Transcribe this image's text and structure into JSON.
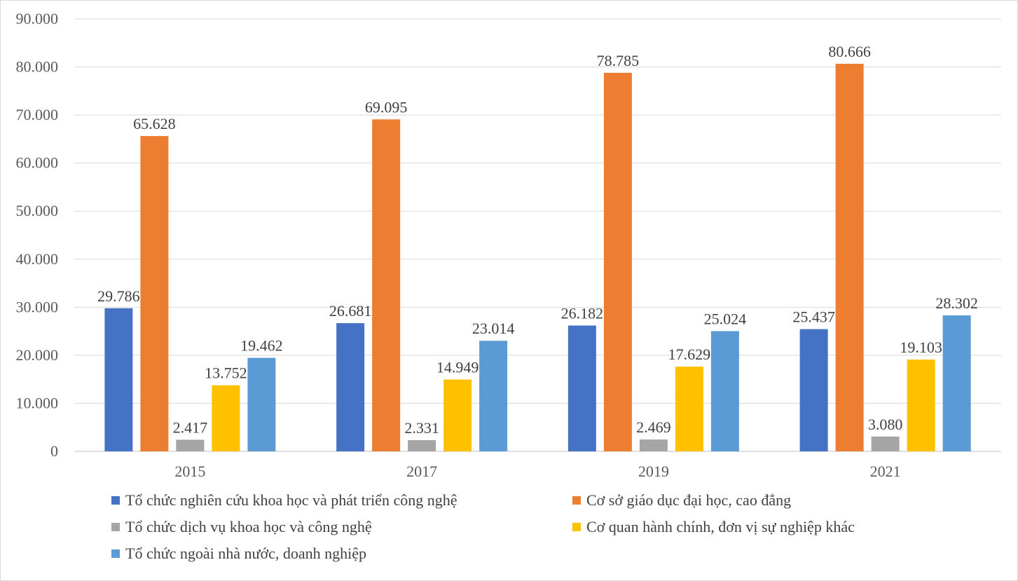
{
  "chart_data": {
    "type": "bar",
    "categories": [
      "2015",
      "2017",
      "2019",
      "2021"
    ],
    "series": [
      {
        "name": "Tổ chức nghiên cứu khoa học và phát triển công nghệ",
        "color": "#4472C4",
        "values": [
          29786,
          26681,
          26182,
          25437
        ],
        "labels": [
          "29.786",
          "26.681",
          "26.182",
          "25.437"
        ]
      },
      {
        "name": "Cơ sở giáo dục đại học, cao đẳng",
        "color": "#ED7D31",
        "values": [
          65628,
          69095,
          78785,
          80666
        ],
        "labels": [
          "65.628",
          "69.095",
          "78.785",
          "80.666"
        ]
      },
      {
        "name": "Tổ chức dịch vụ khoa học và công nghệ",
        "color": "#A5A5A5",
        "values": [
          2417,
          2331,
          2469,
          3080
        ],
        "labels": [
          "2.417",
          "2.331",
          "2.469",
          "3.080"
        ]
      },
      {
        "name": "Cơ quan hành chính, đơn vị sự nghiệp khác",
        "color": "#FFC000",
        "values": [
          13752,
          14949,
          17629,
          19103
        ],
        "labels": [
          "13.752",
          "14.949",
          "17.629",
          "19.103"
        ]
      },
      {
        "name": "Tổ chức ngoài nhà nước, doanh nghiệp",
        "color": "#5B9BD5",
        "values": [
          19462,
          23014,
          25024,
          28302
        ],
        "labels": [
          "19.462",
          "23.014",
          "25.024",
          "28.302"
        ]
      }
    ],
    "y_ticks": [
      0,
      10000,
      20000,
      30000,
      40000,
      50000,
      60000,
      70000,
      80000,
      90000
    ],
    "y_tick_labels": [
      "0",
      "10.000",
      "20.000",
      "30.000",
      "40.000",
      "50.000",
      "60.000",
      "70.000",
      "80.000",
      "90.000"
    ],
    "ylim": [
      0,
      90000
    ],
    "grid": true,
    "legend_position": "bottom",
    "title": "",
    "xlabel": "",
    "ylabel": ""
  }
}
